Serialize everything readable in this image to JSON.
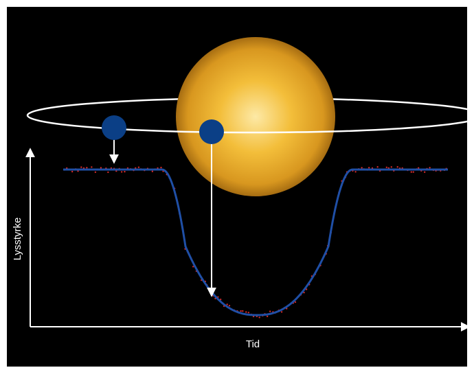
{
  "diagram": {
    "y_axis_label": "Lysstyrke",
    "x_axis_label": "Tid",
    "star_label": "",
    "planet_label": ""
  },
  "colors": {
    "background": "#000000",
    "star_center": "#fde9a6",
    "star_mid": "#f3be3a",
    "star_edge": "#a66d12",
    "planet": "#0b3f86",
    "orbit": "#ffffff",
    "light_curve": "#1f4fa6",
    "measurements": "#d22a2a",
    "axes": "#ffffff"
  },
  "icons": {
    "star": "star-sphere-icon",
    "planet": "planet-disc-icon"
  }
}
